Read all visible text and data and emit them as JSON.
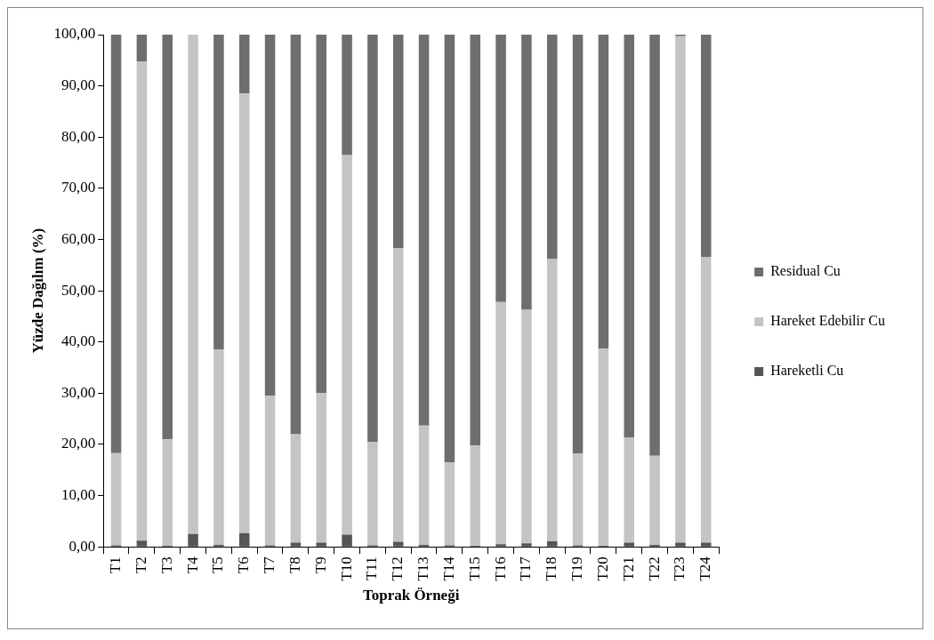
{
  "chart_data": {
    "type": "bar",
    "stacked": true,
    "xlabel": "Toprak Örneği",
    "ylabel": "Yüzde Dağılım (%)",
    "categories": [
      "T1",
      "T2",
      "T3",
      "T4",
      "T5",
      "T6",
      "T7",
      "T8",
      "T9",
      "T10",
      "T11",
      "T12",
      "T13",
      "T14",
      "T15",
      "T16",
      "T17",
      "T18",
      "T19",
      "T20",
      "T21",
      "T22",
      "T23",
      "T24"
    ],
    "series": [
      {
        "name": "Hareketli Cu",
        "color": "#555555",
        "values": [
          0.3,
          1.2,
          0.2,
          2.5,
          0.4,
          2.7,
          0.3,
          0.8,
          0.8,
          2.4,
          0.3,
          1.0,
          0.4,
          0.3,
          0.2,
          0.5,
          0.7,
          1.1,
          0.3,
          0.2,
          0.8,
          0.4,
          0.8,
          0.8
        ]
      },
      {
        "name": "Hareket Edebilir Cu",
        "color": "#c4c4c4",
        "values": [
          18.0,
          93.6,
          20.8,
          97.5,
          38.1,
          85.8,
          29.2,
          21.2,
          29.2,
          74.1,
          20.2,
          57.3,
          23.3,
          16.2,
          19.6,
          47.3,
          45.6,
          55.1,
          17.9,
          38.5,
          20.5,
          17.4,
          98.9,
          55.8
        ]
      },
      {
        "name": "Residual Cu",
        "color": "#6e6e6e",
        "values": [
          81.7,
          5.2,
          79.0,
          0,
          61.5,
          11.5,
          70.5,
          78.0,
          70.0,
          23.5,
          79.5,
          41.7,
          76.3,
          83.5,
          80.2,
          52.2,
          53.7,
          43.8,
          81.8,
          61.3,
          78.7,
          82.2,
          0.3,
          43.4
        ]
      }
    ],
    "ylim": [
      0,
      100
    ],
    "yticks": [
      {
        "value": 0,
        "label": "0,00"
      },
      {
        "value": 10,
        "label": "10,00"
      },
      {
        "value": 20,
        "label": "20,00"
      },
      {
        "value": 30,
        "label": "30,00"
      },
      {
        "value": 40,
        "label": "40,00"
      },
      {
        "value": 50,
        "label": "50,00"
      },
      {
        "value": 60,
        "label": "60,00"
      },
      {
        "value": 70,
        "label": "70,00"
      },
      {
        "value": 80,
        "label": "80,00"
      },
      {
        "value": 90,
        "label": "90,00"
      },
      {
        "value": 100,
        "label": "100,00"
      }
    ],
    "grid": false,
    "legend": "right"
  }
}
